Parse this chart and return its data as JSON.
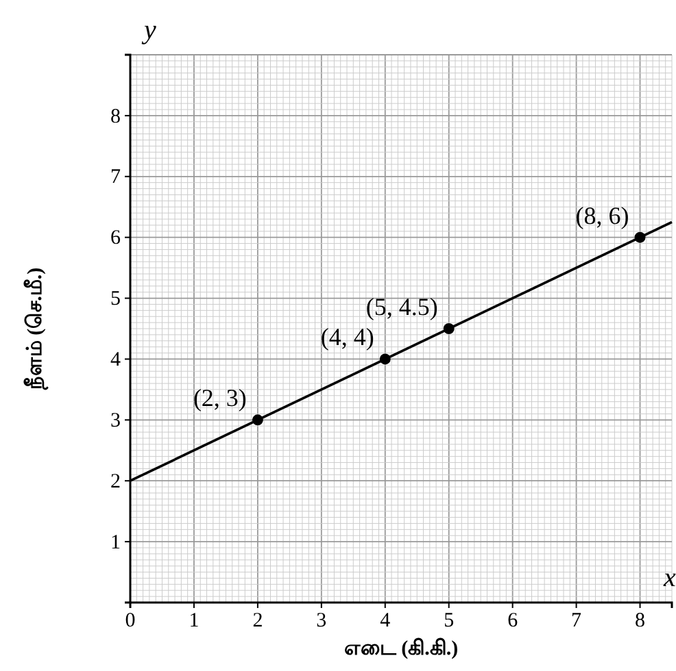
{
  "chart_data": {
    "type": "line",
    "xlabel": "எடை (கி.கி.)",
    "ylabel": "நீளம் (செ.மீ.)",
    "xlim": [
      0,
      8.5
    ],
    "ylim": [
      0,
      9
    ],
    "xticks": [
      0,
      1,
      2,
      3,
      4,
      5,
      6,
      7,
      8
    ],
    "yticks": [
      1,
      2,
      3,
      4,
      5,
      6,
      7,
      8
    ],
    "grid": true,
    "series": [
      {
        "color": "#000000",
        "x": [
          0,
          8.5
        ],
        "values": [
          2,
          6.25
        ]
      },
      {
        "type": "scatter",
        "color": "#000000",
        "x": [
          2,
          4,
          5,
          8
        ],
        "values": [
          3,
          4,
          4.5,
          6
        ],
        "marker": "circle"
      }
    ],
    "annotations": [
      {
        "text": "(2, 3)",
        "x": 2,
        "y": 3
      },
      {
        "text": "(4, 4)",
        "x": 4,
        "y": 4
      },
      {
        "text": "(5, 4.5)",
        "x": 5,
        "y": 4.5
      },
      {
        "text": "(8, 6)",
        "x": 8,
        "y": 6
      },
      "x",
      "y"
    ]
  }
}
